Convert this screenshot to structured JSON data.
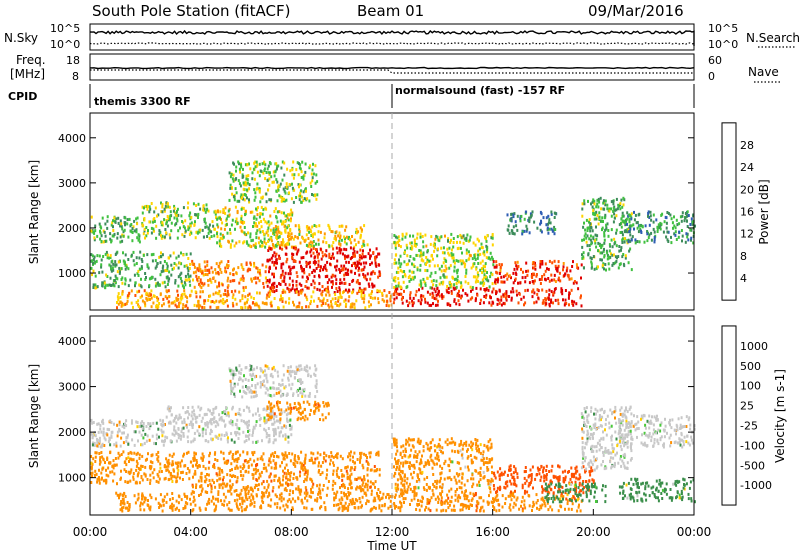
{
  "header": {
    "station": "South Pole Station (fitACF)",
    "beam": "Beam 01",
    "date": "09/Mar/2016"
  },
  "noise_panel": {
    "left_label": "N.Sky",
    "right_label": "N.Search",
    "ticks_left": [
      "10^5",
      "10^0"
    ],
    "ticks_right": [
      "10^5",
      "10^0"
    ]
  },
  "freq_panel": {
    "left_label_line1": "Freq.",
    "left_label_line2": "[MHz]",
    "right_label": "Nave",
    "ticks_left": [
      "18",
      "8"
    ],
    "ticks_right": [
      "60",
      "0"
    ]
  },
  "cpid": {
    "label": "CPID",
    "segments": [
      {
        "text": "themis 3300 RF",
        "start_hour": 0
      },
      {
        "text": "normalsound (fast) -157 RF",
        "start_hour": 12
      }
    ]
  },
  "time_axis": {
    "label": "Time UT",
    "ticks": [
      "00:00",
      "04:00",
      "08:00",
      "12:00",
      "16:00",
      "20:00",
      "00:00"
    ],
    "range_hours": [
      0,
      24
    ]
  },
  "chart_data": [
    {
      "type": "heatmap",
      "title": "Power",
      "ylabel": "Slant Range [km]",
      "xlabel": "",
      "ylim": [
        180,
        4550
      ],
      "yticks": [
        "1000",
        "2000",
        "3000",
        "4000"
      ],
      "colorbar": {
        "label": "Power [dB]",
        "ticks": [
          "4",
          "8",
          "12",
          "16",
          "20",
          "24",
          "28"
        ],
        "range": [
          0,
          30
        ],
        "colors": [
          "#0000ff",
          "#2e5db3",
          "#3c8c5a",
          "#40c040",
          "#ffd400",
          "#ff9a00",
          "#ff5000",
          "#e00000"
        ]
      },
      "regions": [
        {
          "t": [
            0.0,
            2.0
          ],
          "r": [
            1700,
            2300
          ],
          "v": 12
        },
        {
          "t": [
            2.0,
            5.0
          ],
          "r": [
            1800,
            2600
          ],
          "v": 14
        },
        {
          "t": [
            5.0,
            8.0
          ],
          "r": [
            1600,
            2500
          ],
          "v": 16
        },
        {
          "t": [
            5.5,
            9.0
          ],
          "r": [
            2600,
            3500
          ],
          "v": 14
        },
        {
          "t": [
            7.0,
            11.0
          ],
          "r": [
            1600,
            2100
          ],
          "v": 18
        },
        {
          "t": [
            0.0,
            4.0
          ],
          "r": [
            700,
            1500
          ],
          "v": 12
        },
        {
          "t": [
            4.0,
            7.0
          ],
          "r": [
            700,
            1300
          ],
          "v": 22
        },
        {
          "t": [
            7.0,
            11.5
          ],
          "r": [
            600,
            1600
          ],
          "v": 28
        },
        {
          "t": [
            1.0,
            12.0
          ],
          "r": [
            250,
            650
          ],
          "v": 20
        },
        {
          "t": [
            12.0,
            19.5
          ],
          "r": [
            300,
            700
          ],
          "v": 27
        },
        {
          "t": [
            12.0,
            16.0
          ],
          "r": [
            700,
            1900
          ],
          "v": 15
        },
        {
          "t": [
            16.0,
            19.5
          ],
          "r": [
            800,
            1300
          ],
          "v": 26
        },
        {
          "t": [
            16.5,
            18.5
          ],
          "r": [
            1900,
            2400
          ],
          "v": 8
        },
        {
          "t": [
            19.5,
            21.5
          ],
          "r": [
            1100,
            2700
          ],
          "v": 12
        },
        {
          "t": [
            21.0,
            24.0
          ],
          "r": [
            1700,
            2400
          ],
          "v": 10
        }
      ]
    },
    {
      "type": "heatmap",
      "title": "Velocity",
      "ylabel": "Slant Range [km]",
      "xlabel": "Time UT",
      "ylim": [
        180,
        4550
      ],
      "yticks": [
        "1000",
        "2000",
        "3000",
        "4000"
      ],
      "colorbar": {
        "label": "Velocity [m s-1]",
        "ticks": [
          "1000",
          "500",
          "100",
          "25",
          "-25",
          "-100",
          "-500",
          "-1000"
        ],
        "colors": [
          "#2a3db0",
          "#3a6cb0",
          "#3a8e4a",
          "#48c838",
          "#c8c8c8",
          "#ffd000",
          "#ff9000",
          "#ff5000",
          "#e00000"
        ]
      },
      "regions": [
        {
          "t": [
            0.0,
            3.0
          ],
          "r": [
            1700,
            2300
          ],
          "v": 0
        },
        {
          "t": [
            3.0,
            8.0
          ],
          "r": [
            1800,
            2600
          ],
          "v": 0
        },
        {
          "t": [
            7.0,
            9.5
          ],
          "r": [
            2300,
            2700
          ],
          "v": -500
        },
        {
          "t": [
            5.5,
            9.0
          ],
          "r": [
            2800,
            3500
          ],
          "v": 0
        },
        {
          "t": [
            0.0,
            4.0
          ],
          "r": [
            900,
            1600
          ],
          "v": -200
        },
        {
          "t": [
            4.0,
            11.5
          ],
          "r": [
            700,
            1600
          ],
          "v": -500
        },
        {
          "t": [
            1.0,
            12.0
          ],
          "r": [
            300,
            700
          ],
          "v": -300
        },
        {
          "t": [
            12.0,
            19.5
          ],
          "r": [
            300,
            700
          ],
          "v": -500
        },
        {
          "t": [
            12.0,
            16.0
          ],
          "r": [
            700,
            1900
          ],
          "v": -150
        },
        {
          "t": [
            16.0,
            20.0
          ],
          "r": [
            700,
            1300
          ],
          "v": -800
        },
        {
          "t": [
            18.0,
            20.5
          ],
          "r": [
            500,
            900
          ],
          "v": 100
        },
        {
          "t": [
            19.5,
            21.5
          ],
          "r": [
            1200,
            2600
          ],
          "v": 0
        },
        {
          "t": [
            21.0,
            24.0
          ],
          "r": [
            1700,
            2400
          ],
          "v": 0
        },
        {
          "t": [
            21.0,
            24.0
          ],
          "r": [
            500,
            1000
          ],
          "v": 100
        }
      ]
    }
  ]
}
